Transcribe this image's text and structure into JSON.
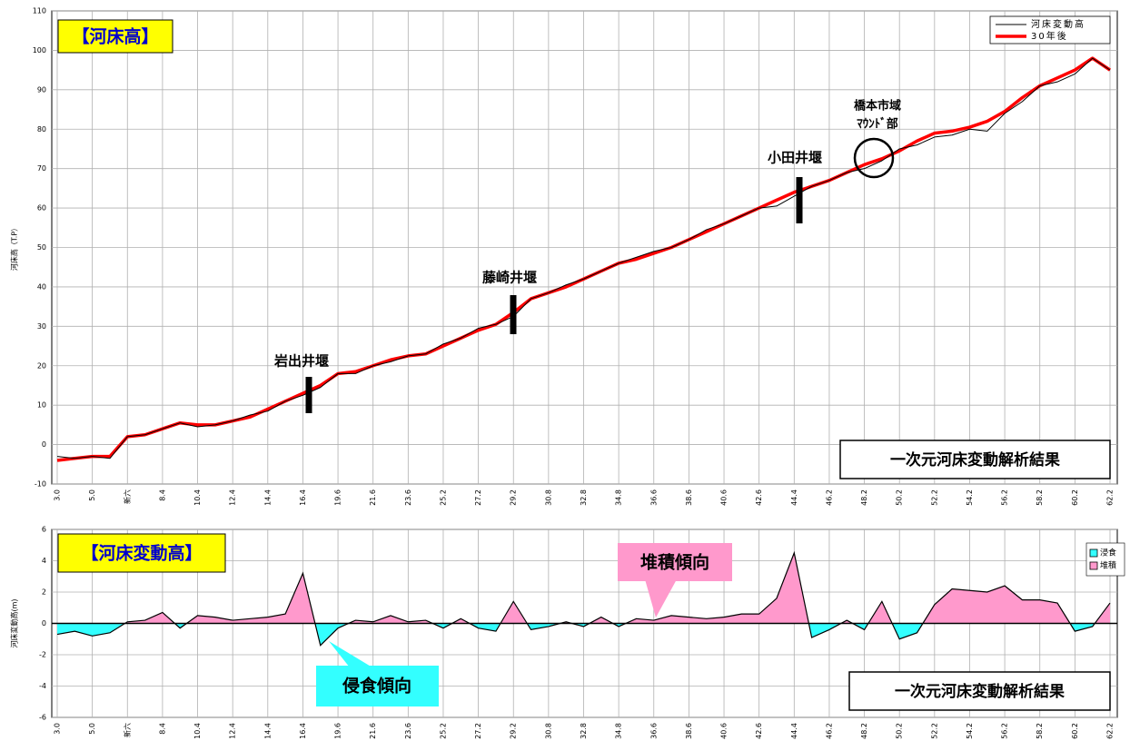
{
  "chart_data": [
    {
      "type": "line",
      "title": "【河床高】",
      "y_label": "河床高（T.P）",
      "categories": [
        "3.0",
        null,
        "5.0",
        null,
        "新六",
        null,
        "8.4",
        null,
        "10.4",
        null,
        "12.4",
        null,
        "14.4",
        null,
        "16.4",
        null,
        "19.6",
        null,
        "21.6",
        null,
        "23.6",
        null,
        "25.2",
        null,
        "27.2",
        null,
        "29.2",
        null,
        "30.8",
        null,
        "32.8",
        null,
        "34.8",
        null,
        "36.6",
        null,
        "38.6",
        null,
        "40.6",
        null,
        "42.6",
        null,
        "44.4",
        null,
        "46.2",
        null,
        "48.2",
        null,
        "50.2",
        null,
        "52.2",
        null,
        "54.2",
        null,
        "56.2",
        null,
        "58.2",
        null,
        "60.2",
        null,
        "62.2"
      ],
      "series": [
        {
          "name": "河床変動高",
          "color": "#000000",
          "values": [
            -3,
            -3.5,
            -3,
            -3.5,
            2,
            2.5,
            4,
            5.5,
            4.5,
            5,
            6,
            7.5,
            8.5,
            11,
            12.5,
            14.5,
            18,
            18,
            20,
            21,
            22.5,
            23,
            25.5,
            27,
            29.5,
            30.5,
            32.5,
            37,
            38.5,
            40.5,
            42,
            44,
            46,
            47.5,
            49,
            50,
            52,
            54.5,
            56,
            58,
            60,
            60.5,
            63,
            65.5,
            67,
            69,
            70,
            72,
            75,
            76,
            78,
            78.5,
            80,
            79.5,
            84,
            87,
            91,
            92,
            94,
            98,
            95
          ]
        },
        {
          "name": "30年後",
          "color": "#ff0000",
          "values": [
            -4,
            -3.5,
            -3,
            -3,
            2,
            2.5,
            4,
            5.5,
            5,
            5,
            6,
            7,
            9,
            11,
            13,
            15,
            18,
            18.5,
            20,
            21.5,
            22.5,
            23,
            25,
            27,
            29,
            30.5,
            33.5,
            37,
            38.5,
            40,
            42,
            44,
            46,
            47,
            48.5,
            50,
            52,
            54,
            56,
            58,
            60,
            62,
            64,
            65.5,
            67,
            69,
            71,
            72.5,
            74.5,
            77,
            79,
            79.5,
            80.5,
            82,
            84.5,
            88,
            91,
            93,
            95,
            98,
            95
          ]
        }
      ],
      "ylim": [
        -10,
        110
      ],
      "yticks": [
        -10,
        0,
        10,
        20,
        30,
        40,
        50,
        60,
        70,
        80,
        90,
        100,
        110
      ],
      "grid": true,
      "legend": "upper right",
      "annotations": [
        "岩出井堰",
        "藤崎井堰",
        "小田井堰",
        "橋本市域",
        "ﾏｳﾝﾄﾞ部"
      ],
      "note": "一次元河床変動解析結果"
    },
    {
      "type": "area",
      "title": "【河床変動高】",
      "y_label": "河床変動高(m)",
      "categories": [
        "3.0",
        null,
        "5.0",
        null,
        "新六",
        null,
        "8.4",
        null,
        "10.4",
        null,
        "12.4",
        null,
        "14.4",
        null,
        "16.4",
        null,
        "19.6",
        null,
        "21.6",
        null,
        "23.6",
        null,
        "25.2",
        null,
        "27.2",
        null,
        "29.2",
        null,
        "30.8",
        null,
        "32.8",
        null,
        "34.8",
        null,
        "36.6",
        null,
        "38.6",
        null,
        "40.6",
        null,
        "42.6",
        null,
        "44.4",
        null,
        "46.2",
        null,
        "48.2",
        null,
        "50.2",
        null,
        "52.2",
        null,
        "54.2",
        null,
        "56.2",
        null,
        "58.2",
        null,
        "60.2",
        null,
        "62.2"
      ],
      "values": [
        -0.7,
        -0.5,
        -0.8,
        -0.6,
        0.1,
        0.2,
        0.7,
        -0.3,
        0.5,
        0.4,
        0.2,
        0.3,
        0.4,
        0.6,
        3.2,
        -1.4,
        -0.3,
        0.2,
        0.1,
        0.5,
        0.1,
        0.2,
        -0.3,
        0.3,
        -0.3,
        -0.5,
        1.4,
        -0.4,
        -0.2,
        0.1,
        -0.2,
        0.4,
        -0.2,
        0.3,
        0.2,
        0.5,
        0.4,
        0.3,
        0.4,
        0.6,
        0.6,
        1.6,
        4.5,
        -0.9,
        -0.4,
        0.2,
        -0.4,
        1.4,
        -1.0,
        -0.6,
        1.2,
        2.2,
        2.1,
        2.0,
        2.4,
        1.5,
        1.5,
        1.3,
        -0.5,
        -0.2,
        1.3
      ],
      "legend_items": [
        {
          "name": "浸食",
          "color": "#33ffff"
        },
        {
          "name": "堆積",
          "color": "#ff99cc"
        }
      ],
      "ylim": [
        -6,
        6
      ],
      "yticks": [
        -6,
        -4,
        -2,
        0,
        2,
        4,
        6
      ],
      "grid": true,
      "legend": "upper right",
      "annotations": [
        "堆積傾向",
        "侵食傾向"
      ],
      "note": "一次元河床変動解析結果"
    }
  ]
}
